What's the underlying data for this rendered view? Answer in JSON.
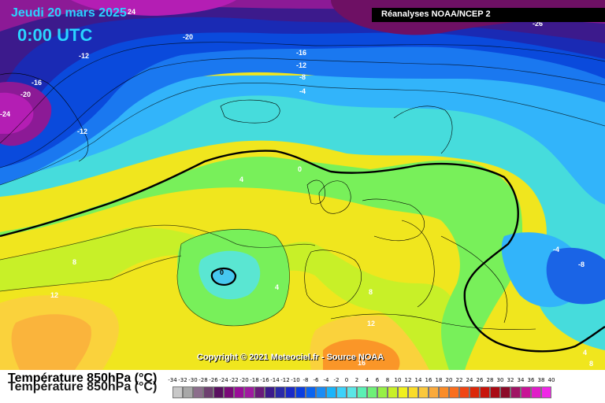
{
  "header": {
    "date": "Jeudi 20 mars 2025",
    "time": "0:00 UTC",
    "source": "Réanalyses NOAA/NCEP 2",
    "corner_label": "24"
  },
  "footer": {
    "copyright": "Copyright © 2021 Meteociel.fr - Source NOAA",
    "title": "Température 850hPa (°C)",
    "title_shadow": "Température 850hPa (°C)"
  },
  "map_labels": {
    "l_m20_top": "-20",
    "l_m26_right": "-26",
    "l_m12_top": "-12",
    "l_m16_grl": "-16",
    "l_m20_grl": "-20",
    "l_m24_grl": "-24",
    "l_m12_grl": "-12",
    "l_m16_nor": "-16",
    "l_m12_nor": "-12",
    "l_m8_nor": "-8",
    "l_m4_nor": "-4",
    "l_0_main": "0",
    "l_4_atl": "4",
    "l_0_low": "0",
    "l_4_low": "4",
    "l_8_west": "8",
    "l_12_west": "12",
    "l_8_spain": "8",
    "l_12_afr": "12",
    "l_16_afr": "16",
    "l_m4_east": "-4",
    "l_m8_east": "-8",
    "l_4_se": "4",
    "l_8_se": "8"
  },
  "legend": {
    "ticks": [
      "-34",
      "-32",
      "-30",
      "-28",
      "-26",
      "-24",
      "-22",
      "-20",
      "-18",
      "-16",
      "-14",
      "-12",
      "-10",
      "-8",
      "-6",
      "-4",
      "-2",
      "0",
      "2",
      "4",
      "6",
      "8",
      "10",
      "12",
      "14",
      "16",
      "18",
      "20",
      "22",
      "24",
      "26",
      "28",
      "30",
      "32",
      "34",
      "36",
      "38",
      "40"
    ],
    "colors": [
      "#c8c8c8",
      "#a8a8a8",
      "#8c6e8c",
      "#6e4070",
      "#5a1060",
      "#7a0a78",
      "#9a0e98",
      "#a01aa0",
      "#6a1a7a",
      "#3c1a8c",
      "#2a2aa8",
      "#1a2ac8",
      "#0a3ee0",
      "#0a64f0",
      "#1a8cf5",
      "#1ab4fa",
      "#3cd2fa",
      "#5ae6e6",
      "#5af0b4",
      "#6ef078",
      "#96f046",
      "#c8f028",
      "#f0f01e",
      "#fadc28",
      "#fac83c",
      "#faaa3c",
      "#fa8c28",
      "#fa6e1e",
      "#f04614",
      "#dc280a",
      "#c8140a",
      "#aa0a14",
      "#8c0a28",
      "#a01464",
      "#c81496",
      "#e01ec8",
      "#f028e6"
    ]
  }
}
